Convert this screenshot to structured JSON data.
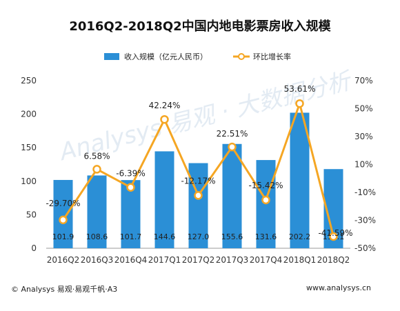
{
  "chart_data": {
    "type": "bar",
    "title": "2016Q2-2018Q2中国内地电影票房收入规模",
    "categories": [
      "2016Q2",
      "2016Q3",
      "2016Q4",
      "2017Q1",
      "2017Q2",
      "2017Q3",
      "2017Q4",
      "2018Q1",
      "2018Q2"
    ],
    "series": [
      {
        "name": "收入规模（亿元人民币）",
        "kind": "bar",
        "axis": "left",
        "color": "#2b8fd6",
        "values": [
          101.9,
          108.6,
          101.7,
          144.6,
          127.0,
          155.6,
          131.6,
          202.2,
          118.1
        ],
        "labels": [
          "101.9",
          "108.6",
          "101.7",
          "144.6",
          "127.0",
          "155.6",
          "131.6",
          "202.2",
          "118.1"
        ]
      },
      {
        "name": "环比增长率",
        "kind": "line",
        "axis": "right",
        "color": "#f5a623",
        "values": [
          -29.7,
          6.58,
          -6.39,
          42.24,
          -12.17,
          22.51,
          -15.42,
          53.61,
          -41.59
        ],
        "labels": [
          "-29.70%",
          "6.58%",
          "-6.39%",
          "42.24%",
          "-12.17%",
          "22.51%",
          "-15.42%",
          "53.61%",
          "-41.59%"
        ]
      }
    ],
    "ylim": [
      0,
      250
    ],
    "yticks": [
      "0",
      "50",
      "100",
      "150",
      "200",
      "250"
    ],
    "y2lim": [
      -50,
      70
    ],
    "y2ticks": [
      "-50%",
      "-30%",
      "-10%",
      "10%",
      "30%",
      "50%",
      "70%"
    ],
    "legend_position": "top-center",
    "grid": false
  },
  "watermark": "Analysys 易观 · 大数据分析",
  "footer": {
    "copyright": "© Analysys 易观·易观千帆·A3",
    "website": "www.analysys.cn"
  }
}
